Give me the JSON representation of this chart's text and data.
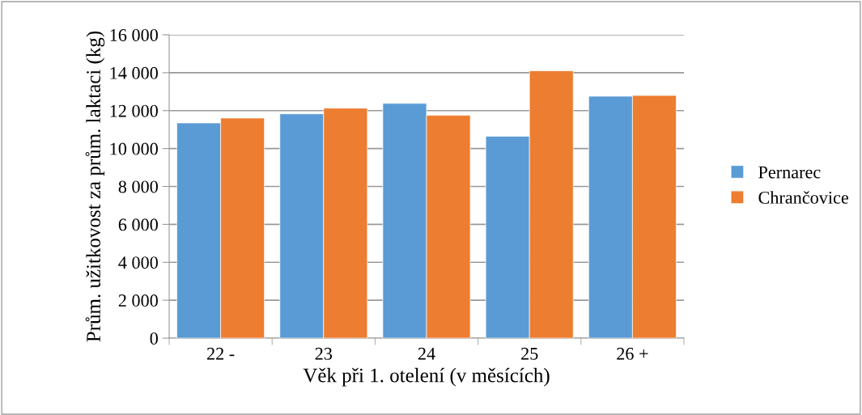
{
  "chart_data": {
    "type": "bar",
    "xlabel": "Věk při 1. otelení (v měsících)",
    "ylabel": "Prům. užitkovost za prům. laktaci (kg)",
    "categories": [
      "22 -",
      "23",
      "24",
      "25",
      "26 +"
    ],
    "series": [
      {
        "name": "Pernarec",
        "color": "#5b9bd5",
        "values": [
          11350,
          11830,
          12380,
          10650,
          12760
        ]
      },
      {
        "name": "Chrančovice",
        "color": "#ed7d31",
        "values": [
          11610,
          12130,
          11750,
          14100,
          12800
        ]
      }
    ],
    "ylim": [
      0,
      16000
    ],
    "yticks": [
      {
        "value": 0,
        "label": "0"
      },
      {
        "value": 2000,
        "label": "2 000"
      },
      {
        "value": 4000,
        "label": "4 000"
      },
      {
        "value": 6000,
        "label": "6 000"
      },
      {
        "value": 8000,
        "label": "8 000"
      },
      {
        "value": 10000,
        "label": "10 000"
      },
      {
        "value": 12000,
        "label": "12 000"
      },
      {
        "value": 14000,
        "label": "14 000"
      },
      {
        "value": 16000,
        "label": "16 000"
      }
    ],
    "grid": "y",
    "legend": "right"
  }
}
